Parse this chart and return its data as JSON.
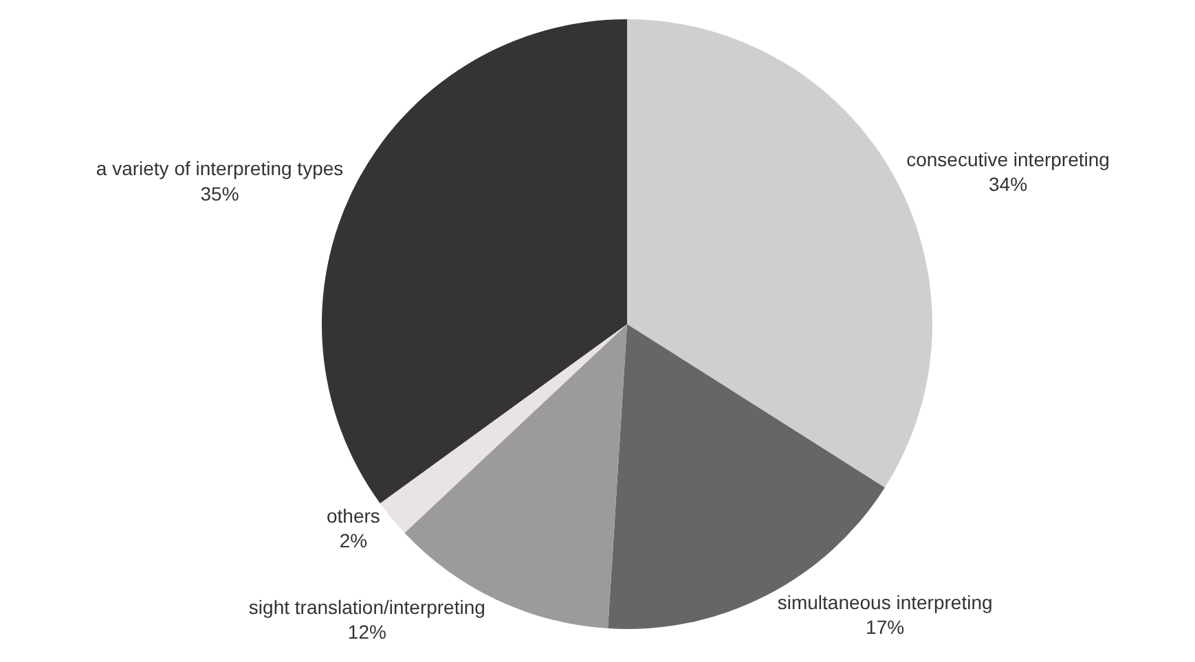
{
  "chart_data": {
    "type": "pie",
    "categories": [
      "consecutive interpreting",
      "simultaneous interpreting",
      "sight translation/interpreting",
      "others",
      "a variety of interpreting types"
    ],
    "values": [
      34,
      17,
      12,
      2,
      35
    ],
    "colors": [
      "#d0cfcd",
      "#676665",
      "#9c9b9a",
      "#e8e4e3",
      "#353433"
    ],
    "value_labels": [
      "34%",
      "17%",
      "12%",
      "2%",
      "35%"
    ],
    "legend": false
  }
}
